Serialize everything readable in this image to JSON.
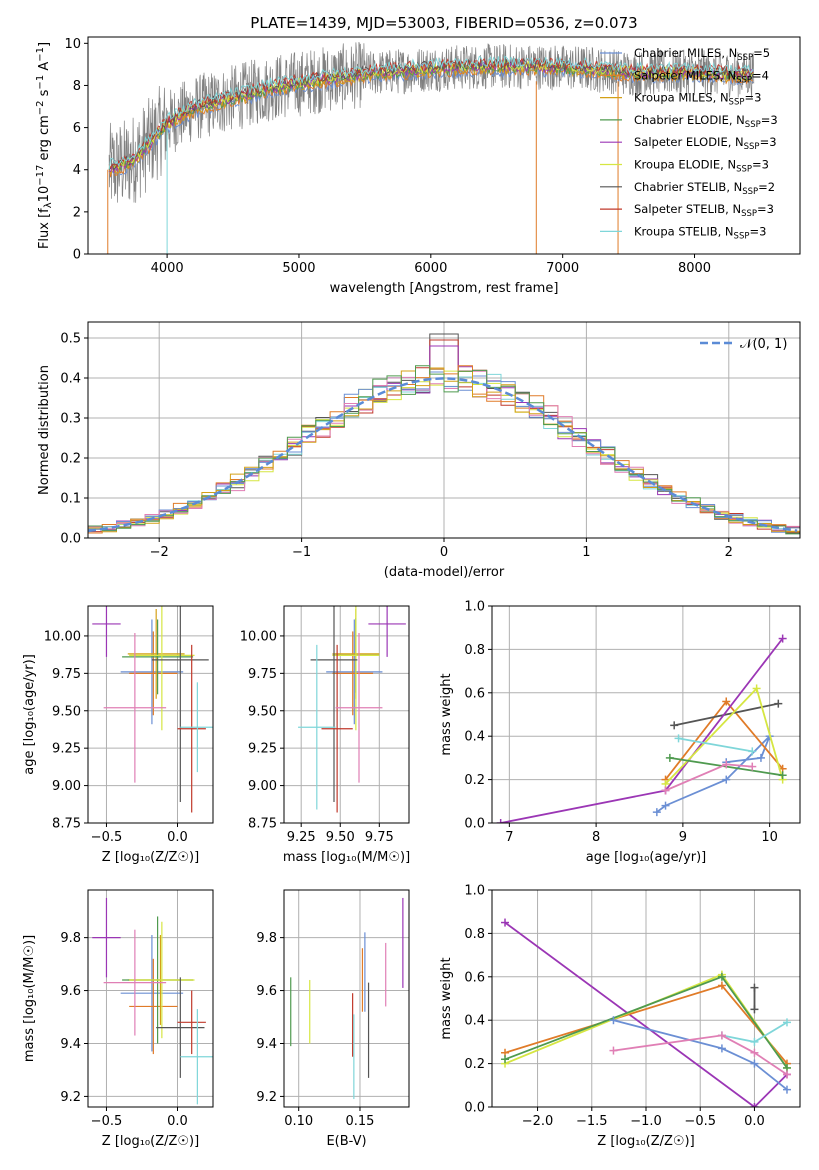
{
  "title": "PLATE=1439, MJD=53003, FIBERID=0536, z=0.073",
  "colors": [
    "#6b8fd4",
    "#e07b28",
    "#d4a017",
    "#4f9a4f",
    "#9b36b5",
    "#d6e642",
    "#555555",
    "#c0392b",
    "#7fd6d9"
  ],
  "chart_data": [
    {
      "id": "spectrum",
      "type": "line",
      "xlabel": "wavelength [Angstrom, rest frame]",
      "ylabel_parts": [
        "Flux [f",
        "λ",
        "10",
        "−17",
        " erg cm",
        "−2",
        " s",
        "−1",
        " A",
        "−1",
        "]"
      ],
      "xlim": [
        3400,
        8800
      ],
      "ylim": [
        0,
        10.3
      ],
      "xticks": [
        4000,
        5000,
        6000,
        7000,
        8000
      ],
      "yticks": [
        0,
        2,
        4,
        6,
        8,
        10
      ],
      "observed_color": "#808080",
      "legend_position": "top-right",
      "legend": [
        {
          "pre": "Chabrier MILES, N",
          "sub": "SSP",
          "post": "=5",
          "color": "#6b8fd4"
        },
        {
          "pre": "Salpeter MILES, N",
          "sub": "SSP",
          "post": "=4",
          "color": "#e07b28"
        },
        {
          "pre": "Kroupa MILES, N",
          "sub": "SSP",
          "post": "=3",
          "color": "#d4a017"
        },
        {
          "pre": "Chabrier ELODIE, N",
          "sub": "SSP",
          "post": "=3",
          "color": "#4f9a4f"
        },
        {
          "pre": "Salpeter ELODIE, N",
          "sub": "SSP",
          "post": "=3",
          "color": "#9b36b5"
        },
        {
          "pre": "Kroupa ELODIE, N",
          "sub": "SSP",
          "post": "=3",
          "color": "#d6e642"
        },
        {
          "pre": "Chabrier STELIB, N",
          "sub": "SSP",
          "post": "=2",
          "color": "#555555"
        },
        {
          "pre": "Salpeter STELIB, N",
          "sub": "SSP",
          "post": "=3",
          "color": "#c0392b"
        },
        {
          "pre": "Kroupa STELIB, N",
          "sub": "SSP",
          "post": "=3",
          "color": "#7fd6d9"
        }
      ],
      "continuum": [
        [
          3550,
          4.0
        ],
        [
          3700,
          4.3
        ],
        [
          3800,
          4.8
        ],
        [
          3900,
          5.5
        ],
        [
          4000,
          6.2
        ],
        [
          4200,
          6.9
        ],
        [
          4500,
          7.4
        ],
        [
          4800,
          7.9
        ],
        [
          5200,
          8.3
        ],
        [
          5600,
          8.6
        ],
        [
          6000,
          8.8
        ],
        [
          6400,
          8.9
        ],
        [
          6800,
          8.9
        ],
        [
          7200,
          8.8
        ],
        [
          7500,
          8.6
        ],
        [
          8000,
          8.6
        ],
        [
          8400,
          8.5
        ]
      ],
      "model_start_x": 3560,
      "model_end_x": 8450
    },
    {
      "id": "residuals",
      "type": "histogram",
      "xlabel": "(data-model)/error",
      "ylabel": "Normed distribution",
      "xlim": [
        -2.5,
        2.5
      ],
      "ylim": [
        0,
        0.54
      ],
      "xticks": [
        -2,
        -1,
        0,
        1,
        2
      ],
      "yticks": [
        0.0,
        0.1,
        0.2,
        0.3,
        0.4,
        0.5
      ],
      "xtick_labels": [
        "−2",
        "−1",
        "0",
        "1",
        "2"
      ],
      "ytick_labels": [
        "0.0",
        "0.1",
        "0.2",
        "0.3",
        "0.4",
        "0.5"
      ],
      "reference_label": "𝒩(0, 1)",
      "reference_color": "#5b8bd6",
      "legend_position": "top-right",
      "peak_value": 0.51
    },
    {
      "id": "age_vs_Z",
      "type": "errorbar",
      "xlabel": "Z [log₁₀(Z/Z☉)]",
      "ylabel": "age  [log₁₀(age/yr)]",
      "xlim": [
        -0.63,
        0.25
      ],
      "ylim": [
        8.75,
        10.2
      ],
      "xticks": [
        -0.5,
        0.0
      ],
      "xtick_labels": [
        "−0.5",
        "0.0"
      ],
      "yticks": [
        8.75,
        9.0,
        9.25,
        9.5,
        9.75,
        10.0
      ],
      "ytick_labels": [
        "8.75",
        "9.00",
        "9.25",
        "9.50",
        "9.75",
        "10.00"
      ],
      "points": [
        {
          "x": -0.18,
          "xerr": 0.22,
          "y": 9.76,
          "yerr": 0.35,
          "c": 0
        },
        {
          "x": -0.17,
          "xerr": 0.17,
          "y": 9.75,
          "yerr": 0.28,
          "c": 1
        },
        {
          "x": -0.15,
          "xerr": 0.2,
          "y": 9.88,
          "yerr": 0.3,
          "c": 2
        },
        {
          "x": -0.14,
          "xerr": 0.25,
          "y": 9.86,
          "yerr": 0.25,
          "c": 3
        },
        {
          "x": -0.5,
          "xerr": 0.1,
          "y": 10.08,
          "yerr": 0.22,
          "c": 4
        },
        {
          "x": -0.11,
          "xerr": 0.23,
          "y": 9.87,
          "yerr": 0.5,
          "c": 5
        },
        {
          "x": 0.02,
          "xerr": 0.2,
          "y": 9.84,
          "yerr": 0.95,
          "c": 6
        },
        {
          "x": 0.1,
          "xerr": 0.1,
          "y": 9.38,
          "yerr": 0.56,
          "c": 7
        },
        {
          "x": 0.14,
          "xerr": 0.12,
          "y": 9.39,
          "yerr": 0.3,
          "c": 8
        },
        {
          "x": -0.3,
          "xerr": 0.22,
          "y": 9.52,
          "yerr": 0.5,
          "c": "pink"
        }
      ]
    },
    {
      "id": "age_vs_mass",
      "type": "errorbar",
      "xlabel": "mass [log₁₀(M/M☉)]",
      "xlim": [
        9.14,
        9.94
      ],
      "ylim": [
        8.75,
        10.2
      ],
      "xticks": [
        9.25,
        9.5,
        9.75
      ],
      "xtick_labels": [
        "9.25",
        "9.50",
        "9.75"
      ],
      "yticks": [
        8.75,
        9.0,
        9.25,
        9.5,
        9.75,
        10.0
      ],
      "ytick_labels": [
        "8.75",
        "9.00",
        "9.25",
        "9.50",
        "9.75",
        "10.00"
      ],
      "points": [
        {
          "x": 9.59,
          "xerr": 0.18,
          "y": 9.76,
          "yerr": 0.35,
          "c": 0
        },
        {
          "x": 9.58,
          "xerr": 0.13,
          "y": 9.75,
          "yerr": 0.28,
          "c": 1
        },
        {
          "x": 9.6,
          "xerr": 0.15,
          "y": 9.88,
          "yerr": 0.3,
          "c": 2
        },
        {
          "x": 9.6,
          "xerr": 0.15,
          "y": 9.87,
          "yerr": 0.25,
          "c": 3
        },
        {
          "x": 9.8,
          "xerr": 0.12,
          "y": 10.08,
          "yerr": 0.22,
          "c": 4
        },
        {
          "x": 9.6,
          "xerr": 0.15,
          "y": 9.87,
          "yerr": 0.5,
          "c": 5
        },
        {
          "x": 9.46,
          "xerr": 0.15,
          "y": 9.84,
          "yerr": 0.95,
          "c": 6
        },
        {
          "x": 9.48,
          "xerr": 0.1,
          "y": 9.38,
          "yerr": 0.56,
          "c": 7
        },
        {
          "x": 9.35,
          "xerr": 0.12,
          "y": 9.39,
          "yerr": 0.55,
          "c": 8
        },
        {
          "x": 9.62,
          "xerr": 0.15,
          "y": 9.52,
          "yerr": 0.5,
          "c": "pink"
        }
      ]
    },
    {
      "id": "weight_vs_age",
      "type": "line",
      "xlabel": "age  [log₁₀(age/yr)]",
      "ylabel": "mass weight",
      "xlim": [
        6.8,
        10.35
      ],
      "ylim": [
        0,
        1.0
      ],
      "xticks": [
        7,
        8,
        9,
        10
      ],
      "xtick_labels": [
        "7",
        "8",
        "9",
        "10"
      ],
      "yticks": [
        0,
        0.2,
        0.4,
        0.6,
        0.8,
        1.0
      ],
      "ytick_labels": [
        "0.0",
        "0.2",
        "0.4",
        "0.6",
        "0.8",
        "1.0"
      ],
      "series": [
        {
          "c": 0,
          "x": [
            8.7,
            8.8,
            9.5,
            10.0,
            9.9,
            9.5
          ],
          "y": [
            0.05,
            0.08,
            0.2,
            0.4,
            0.3,
            0.28
          ]
        },
        {
          "c": 1,
          "x": [
            8.8,
            9.5,
            10.15
          ],
          "y": [
            0.2,
            0.56,
            0.25
          ]
        },
        {
          "c": 6,
          "x": [
            8.9,
            10.1
          ],
          "y": [
            0.45,
            0.55
          ]
        },
        {
          "c": 4,
          "x": [
            6.9,
            8.8,
            10.15
          ],
          "y": [
            0.0,
            0.15,
            0.85
          ]
        },
        {
          "c": 5,
          "x": [
            8.8,
            9.85,
            10.15
          ],
          "y": [
            0.18,
            0.62,
            0.2
          ]
        },
        {
          "c": 3,
          "x": [
            8.85,
            10.15
          ],
          "y": [
            0.3,
            0.22
          ]
        },
        {
          "c": 8,
          "x": [
            8.95,
            9.8
          ],
          "y": [
            0.39,
            0.33
          ]
        },
        {
          "c": "pink",
          "x": [
            8.8,
            9.5,
            9.8
          ],
          "y": [
            0.15,
            0.27,
            0.26
          ]
        }
      ]
    },
    {
      "id": "mass_vs_Z",
      "type": "errorbar",
      "xlabel": "Z [log₁₀(Z/Z☉)]",
      "ylabel": "mass [log₁₀(M/M☉)]",
      "xlim": [
        -0.63,
        0.25
      ],
      "ylim": [
        9.16,
        9.98
      ],
      "xticks": [
        -0.5,
        0.0
      ],
      "xtick_labels": [
        "−0.5",
        "0.0"
      ],
      "yticks": [
        9.2,
        9.4,
        9.6,
        9.8
      ],
      "ytick_labels": [
        "9.2",
        "9.4",
        "9.6",
        "9.8"
      ],
      "points": [
        {
          "x": -0.18,
          "xerr": 0.22,
          "y": 9.59,
          "yerr": 0.22,
          "c": 0
        },
        {
          "x": -0.17,
          "xerr": 0.17,
          "y": 9.54,
          "yerr": 0.18,
          "c": 1
        },
        {
          "x": -0.12,
          "xerr": 0.23,
          "y": 9.64,
          "yerr": 0.17,
          "c": 2
        },
        {
          "x": -0.14,
          "xerr": 0.25,
          "y": 9.64,
          "yerr": 0.24,
          "c": 3
        },
        {
          "x": -0.5,
          "xerr": 0.1,
          "y": 9.8,
          "yerr": 0.15,
          "c": 4
        },
        {
          "x": -0.11,
          "xerr": 0.23,
          "y": 9.64,
          "yerr": 0.22,
          "c": 5
        },
        {
          "x": 0.02,
          "xerr": 0.17,
          "y": 9.46,
          "yerr": 0.19,
          "c": 6
        },
        {
          "x": 0.1,
          "xerr": 0.1,
          "y": 9.48,
          "yerr": 0.12,
          "c": 7
        },
        {
          "x": 0.14,
          "xerr": 0.12,
          "y": 9.35,
          "yerr": 0.18,
          "c": 8
        },
        {
          "x": -0.3,
          "xerr": 0.22,
          "y": 9.63,
          "yerr": 0.2,
          "c": "pink"
        }
      ]
    },
    {
      "id": "mass_vs_ebv",
      "type": "errorbar",
      "xlabel": "E(B-V)",
      "xlim": [
        0.088,
        0.19
      ],
      "ylim": [
        9.16,
        9.98
      ],
      "xticks": [
        0.1,
        0.15
      ],
      "xtick_labels": [
        "0.10",
        "0.15"
      ],
      "yticks": [
        9.2,
        9.4,
        9.6,
        9.8
      ],
      "ytick_labels": [
        "9.2",
        "9.4",
        "9.6",
        "9.8"
      ],
      "points": [
        {
          "x": 0.0935,
          "y": 9.52,
          "yerr": 0.13,
          "c": 3
        },
        {
          "x": 0.109,
          "y": 9.52,
          "yerr": 0.12,
          "c": 5
        },
        {
          "x": 0.144,
          "y": 9.47,
          "yerr": 0.12,
          "c": 7
        },
        {
          "x": 0.145,
          "y": 9.35,
          "yerr": 0.16,
          "c": 8
        },
        {
          "x": 0.152,
          "y": 9.64,
          "yerr": 0.12,
          "c": 1
        },
        {
          "x": 0.154,
          "y": 9.67,
          "yerr": 0.15,
          "c": 0
        },
        {
          "x": 0.157,
          "y": 9.45,
          "yerr": 0.18,
          "c": 6
        },
        {
          "x": 0.171,
          "y": 9.66,
          "yerr": 0.12,
          "c": "pink"
        },
        {
          "x": 0.185,
          "y": 9.78,
          "yerr": 0.17,
          "c": 4
        }
      ]
    },
    {
      "id": "weight_vs_Z",
      "type": "line",
      "xlabel": "Z [log₁₀(Z/Z☉)]",
      "ylabel": "mass weight",
      "xlim": [
        -2.42,
        0.42
      ],
      "ylim": [
        0,
        1.0
      ],
      "xticks": [
        -2.0,
        -1.5,
        -1.0,
        -0.5,
        0.0
      ],
      "xtick_labels": [
        "−2.0",
        "−1.5",
        "−1.0",
        "−0.5",
        "0.0"
      ],
      "yticks": [
        0,
        0.2,
        0.4,
        0.6,
        0.8,
        1.0
      ],
      "ytick_labels": [
        "0.0",
        "0.2",
        "0.4",
        "0.6",
        "0.8",
        "1.0"
      ],
      "series": [
        {
          "c": 4,
          "x": [
            -2.3,
            0.0,
            0.3
          ],
          "y": [
            0.85,
            0.0,
            0.15
          ]
        },
        {
          "c": 1,
          "x": [
            -2.3,
            -0.3,
            0.3
          ],
          "y": [
            0.25,
            0.56,
            0.2
          ]
        },
        {
          "c": 5,
          "x": [
            -2.3,
            -0.3,
            0.3
          ],
          "y": [
            0.2,
            0.61,
            0.18
          ]
        },
        {
          "c": 3,
          "x": [
            -2.3,
            -0.3,
            0.3
          ],
          "y": [
            0.22,
            0.6,
            0.18
          ]
        },
        {
          "c": 0,
          "x": [
            -1.3,
            -0.3,
            0.0,
            0.3
          ],
          "y": [
            0.4,
            0.27,
            0.2,
            0.08
          ]
        },
        {
          "c": 6,
          "x": [
            0.0,
            0.0
          ],
          "y": [
            0.45,
            0.55
          ]
        },
        {
          "c": 8,
          "x": [
            -0.3,
            0.0,
            0.3
          ],
          "y": [
            0.33,
            0.3,
            0.39
          ]
        },
        {
          "c": "pink",
          "x": [
            -1.3,
            -0.3,
            0.0,
            0.3
          ],
          "y": [
            0.26,
            0.33,
            0.25,
            0.15
          ]
        }
      ]
    }
  ]
}
